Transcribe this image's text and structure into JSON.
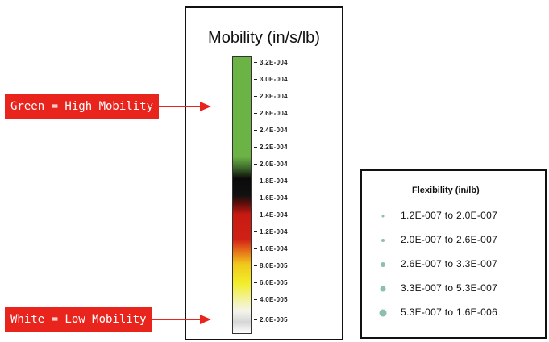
{
  "mobility": {
    "title": "Mobility (in/s/lb)",
    "ticks": [
      "3.2E-004",
      "3.0E-004",
      "2.8E-004",
      "2.6E-004",
      "2.4E-004",
      "2.2E-004",
      "2.0E-004",
      "1.8E-004",
      "1.6E-004",
      "1.4E-004",
      "1.2E-004",
      "1.0E-004",
      "8.0E-005",
      "6.0E-005",
      "4.0E-005",
      "2.0E-005"
    ],
    "colors": {
      "high": "#6cb345",
      "mid_dark": "#0a0a0a",
      "mid_red": "#c81a12",
      "low_yellow": "#f2ee2a",
      "low_white": "#ffffff"
    }
  },
  "flexibility": {
    "title": "Flexibility (in/lb)",
    "marker_color": "#8cbfb0",
    "rows": [
      {
        "range": "1.2E-007  to  2.0E-007"
      },
      {
        "range": "2.0E-007  to  2.6E-007"
      },
      {
        "range": "2.6E-007  to  3.3E-007"
      },
      {
        "range": "3.3E-007  to  5.3E-007"
      },
      {
        "range": "5.3E-007  to  1.6E-006"
      }
    ]
  },
  "callouts": {
    "high": "Green = High Mobility",
    "low": "White = Low Mobility",
    "color": "#e8241c"
  }
}
